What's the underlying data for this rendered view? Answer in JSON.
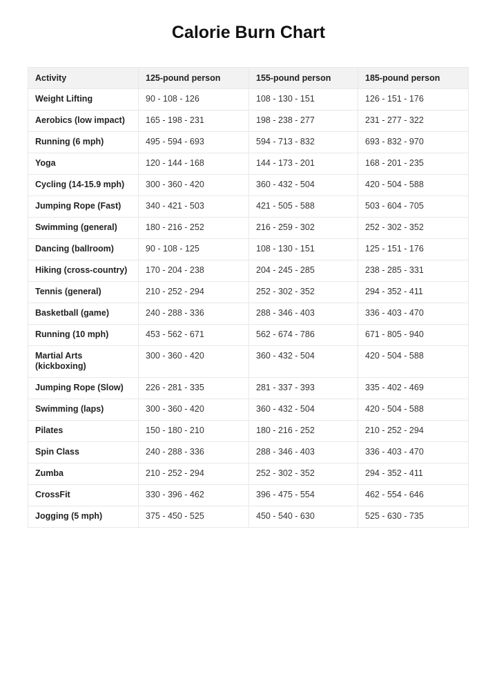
{
  "title": "Calorie Burn Chart",
  "table": {
    "headers": [
      "Activity",
      "125-pound person",
      "155-pound person",
      "185-pound person"
    ],
    "rows": [
      [
        "Weight Lifting",
        "90 - 108 - 126",
        "108 - 130 - 151",
        "126 - 151 - 176"
      ],
      [
        "Aerobics (low impact)",
        "165 - 198 - 231",
        "198 - 238 - 277",
        "231 - 277 - 322"
      ],
      [
        "Running (6 mph)",
        "495 - 594 - 693",
        "594 - 713 - 832",
        "693 - 832 - 970"
      ],
      [
        "Yoga",
        "120 - 144 - 168",
        "144 - 173 - 201",
        "168 - 201 - 235"
      ],
      [
        "Cycling (14-15.9 mph)",
        "300 - 360 - 420",
        "360 - 432 - 504",
        "420 - 504 - 588"
      ],
      [
        "Jumping Rope (Fast)",
        "340 - 421 - 503",
        "421 - 505 - 588",
        "503 - 604 - 705"
      ],
      [
        "Swimming (general)",
        "180 - 216 - 252",
        "216 - 259 - 302",
        "252 - 302 - 352"
      ],
      [
        "Dancing (ballroom)",
        "90 - 108 - 125",
        "108 - 130 - 151",
        "125 - 151 - 176"
      ],
      [
        "Hiking (cross-country)",
        "170 - 204 - 238",
        "204 - 245 - 285",
        "238 - 285 - 331"
      ],
      [
        "Tennis (general)",
        "210 - 252 - 294",
        "252 - 302 - 352",
        "294 - 352 - 411"
      ],
      [
        "Basketball (game)",
        "240 - 288 - 336",
        "288 - 346 - 403",
        "336 - 403 - 470"
      ],
      [
        "Running (10 mph)",
        "453 - 562 - 671",
        "562 - 674 - 786",
        "671 - 805 - 940"
      ],
      [
        "Martial Arts (kickboxing)",
        "300 - 360 - 420",
        "360 - 432 - 504",
        "420 - 504 - 588"
      ],
      [
        "Jumping Rope (Slow)",
        "226 - 281 - 335",
        "281 - 337 - 393",
        "335 - 402 - 469"
      ],
      [
        "Swimming (laps)",
        "300 - 360 - 420",
        "360 - 432 - 504",
        "420 - 504 - 588"
      ],
      [
        "Pilates",
        "150 - 180 - 210",
        "180 - 216 - 252",
        "210 - 252 - 294"
      ],
      [
        "Spin Class",
        "240 - 288 - 336",
        "288 - 346 - 403",
        "336 - 403 - 470"
      ],
      [
        "Zumba",
        "210 - 252 - 294",
        "252 - 302 - 352",
        "294 - 352 - 411"
      ],
      [
        "CrossFit",
        "330 - 396 - 462",
        "396 - 475 - 554",
        "462 - 554 - 646"
      ],
      [
        "Jogging (5 mph)",
        "375 - 450 - 525",
        "450 - 540 - 630",
        "525 - 630 - 735"
      ]
    ]
  }
}
